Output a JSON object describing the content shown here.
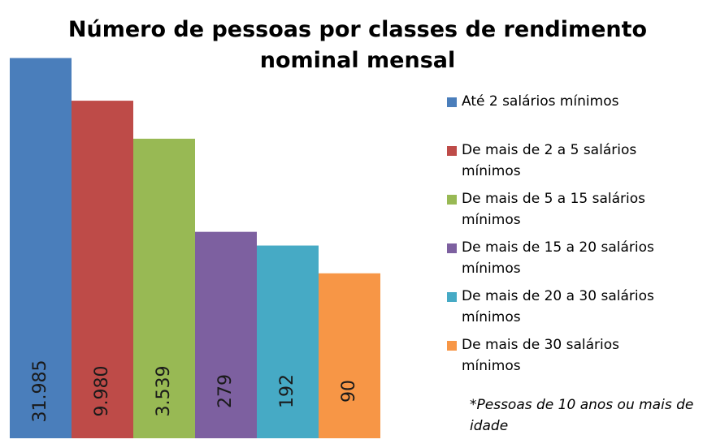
{
  "chart_data": {
    "type": "bar",
    "title": "Número de pessoas por classes de rendimento nominal mensal",
    "categories": [
      "Até 2 salários mínimos",
      "De mais de 2 a 5 salários mínimos",
      "De mais de 5 a 15 salários mínimos",
      "De mais de 15 a 20 salários mínimos",
      "De mais de 20 a 30 salários mínimos",
      "De mais de 30 salários mínimos"
    ],
    "values": [
      31985,
      9980,
      3539,
      279,
      192,
      90
    ],
    "value_labels": [
      "31.985",
      "9.980",
      "3.539",
      "279",
      "192",
      "90"
    ],
    "colors": [
      "#4a7ebb",
      "#be4b48",
      "#98b954",
      "#7d60a0",
      "#46aac5",
      "#f79646"
    ],
    "log_scale": true,
    "ylim": [
      1,
      100000
    ],
    "legend": "right",
    "annotation": "*Pessoas de 10 anos ou mais de idade"
  }
}
